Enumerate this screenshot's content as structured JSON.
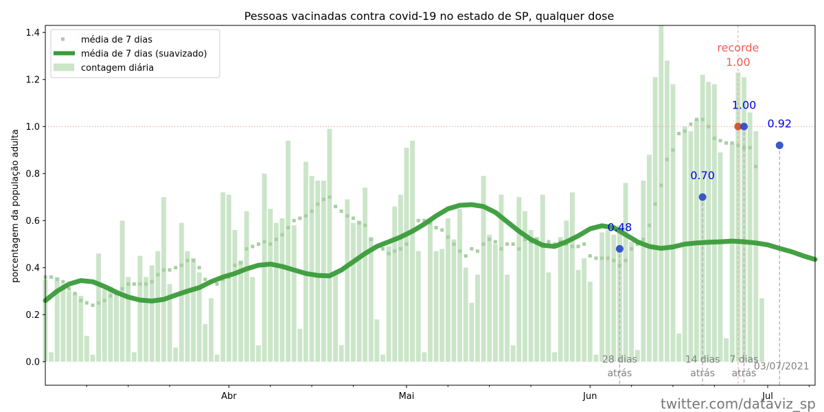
{
  "chart_data": {
    "type": "bar",
    "title": "Pessoas vacinadas contra covid-19 no estado de SP, qualquer dose",
    "ylabel": "porcentagem da população adulta",
    "xlabel": "",
    "ylim": [
      -0.1,
      1.43
    ],
    "yticks": [
      0.0,
      0.2,
      0.4,
      0.6,
      0.8,
      1.0,
      1.2,
      1.4
    ],
    "ytick_labels": [
      "0.0",
      "0.2",
      "0.4",
      "0.6",
      "0.8",
      "1.0",
      "1.2",
      "1.4"
    ],
    "x_start_date": "2021-03-01",
    "x_end_date": "2021-07-09",
    "month_ticks": [
      {
        "label": "Abr",
        "date": "2021-04-01"
      },
      {
        "label": "Mai",
        "date": "2021-05-01"
      },
      {
        "label": "Jun",
        "date": "2021-06-01"
      },
      {
        "label": "Jul",
        "date": "2021-07-01"
      }
    ],
    "minor_tick_dates": [
      "2021-03-08",
      "2021-03-15",
      "2021-03-22",
      "2021-04-08",
      "2021-04-15",
      "2021-04-22",
      "2021-05-08",
      "2021-05-15",
      "2021-05-22",
      "2021-06-08",
      "2021-06-15",
      "2021-06-22",
      "2021-07-08"
    ],
    "legend": {
      "position": "upper-left",
      "entries": [
        {
          "label": "média de 7 dias",
          "kind": "points"
        },
        {
          "label": "média de 7 dias (suavizado)",
          "kind": "line"
        },
        {
          "label": "contagem diária",
          "kind": "bar"
        }
      ]
    },
    "colors": {
      "bar": "#cbe5c9",
      "points": "#a8cfa3",
      "line": "#3a9b3a",
      "marker": "#2747c9",
      "record_marker": "#d24a1f",
      "record_text": "#f25c54",
      "annotation": "#0000e6",
      "guide": "#aaaaaa",
      "gray_text": "#808080"
    },
    "daily_counts": [
      0.35,
      0.04,
      0.36,
      0.33,
      0.3,
      0.29,
      0.28,
      0.11,
      0.03,
      0.46,
      0.31,
      0.32,
      0.29,
      0.6,
      0.36,
      0.04,
      0.45,
      0.36,
      0.41,
      0.47,
      0.7,
      0.33,
      0.06,
      0.59,
      0.47,
      0.44,
      0.38,
      0.16,
      0.27,
      0.03,
      0.72,
      0.71,
      0.56,
      0.43,
      0.64,
      0.36,
      0.07,
      0.8,
      0.65,
      0.59,
      0.61,
      0.94,
      0.58,
      0.14,
      0.85,
      0.79,
      0.77,
      0.77,
      0.99,
      0.38,
      0.07,
      0.69,
      0.59,
      0.6,
      0.74,
      0.53,
      0.18,
      0.03,
      0.49,
      0.66,
      0.71,
      0.91,
      0.94,
      0.47,
      0.04,
      0.6,
      0.47,
      0.48,
      0.61,
      0.52,
      0.65,
      0.4,
      0.25,
      0.37,
      0.79,
      0.54,
      0.5,
      0.71,
      0.37,
      0.07,
      0.7,
      0.64,
      0.56,
      0.53,
      0.71,
      0.38,
      0.04,
      0.53,
      0.6,
      0.72,
      0.39,
      0.44,
      0.34,
      0.03,
      0.55,
      0.56,
      0.54,
      0.58,
      0.76,
      0.51,
      0.05,
      0.77,
      0.88,
      1.21,
      1.43,
      1.28,
      1.18,
      0.12,
      1.0,
      0.98,
      1.03,
      1.22,
      1.19,
      1.18,
      0.89,
      0.1,
      0.93,
      1.23,
      1.21,
      1.06,
      0.98,
      0.27
    ],
    "weekly_avg": [
      0.36,
      0.36,
      0.35,
      0.34,
      0.31,
      0.29,
      0.26,
      0.25,
      0.24,
      0.25,
      0.26,
      0.28,
      0.29,
      0.31,
      0.33,
      0.33,
      0.33,
      0.33,
      0.34,
      0.37,
      0.39,
      0.39,
      0.4,
      0.41,
      0.43,
      0.43,
      0.4,
      0.35,
      0.34,
      0.33,
      0.35,
      0.36,
      0.41,
      0.42,
      0.48,
      0.49,
      0.5,
      0.51,
      0.5,
      0.52,
      0.54,
      0.57,
      0.6,
      0.61,
      0.62,
      0.64,
      0.67,
      0.69,
      0.7,
      0.66,
      0.64,
      0.62,
      0.61,
      0.59,
      0.58,
      0.52,
      0.49,
      0.48,
      0.46,
      0.47,
      0.48,
      0.5,
      0.56,
      0.6,
      0.6,
      0.59,
      0.57,
      0.56,
      0.53,
      0.5,
      0.47,
      0.45,
      0.48,
      0.47,
      0.5,
      0.52,
      0.51,
      0.48,
      0.5,
      0.5,
      0.48,
      0.52,
      0.51,
      0.52,
      0.5,
      0.51,
      0.5,
      0.51,
      0.5,
      0.49,
      0.49,
      0.5,
      0.45,
      0.44,
      0.44,
      0.44,
      0.43,
      0.41,
      0.43,
      0.48,
      0.5,
      0.52,
      0.58,
      0.67,
      0.75,
      0.86,
      0.9,
      0.97,
      0.98,
      1.01,
      1.03,
      1.03,
      1.0,
      0.95,
      0.94,
      0.93,
      0.93,
      0.92,
      0.91,
      0.91,
      0.83
    ],
    "smoothed_line": [
      [
        "2021-03-01",
        0.26
      ],
      [
        "2021-03-03",
        0.3
      ],
      [
        "2021-03-05",
        0.33
      ],
      [
        "2021-03-07",
        0.345
      ],
      [
        "2021-03-09",
        0.34
      ],
      [
        "2021-03-11",
        0.32
      ],
      [
        "2021-03-13",
        0.295
      ],
      [
        "2021-03-15",
        0.275
      ],
      [
        "2021-03-17",
        0.262
      ],
      [
        "2021-03-19",
        0.258
      ],
      [
        "2021-03-21",
        0.265
      ],
      [
        "2021-03-23",
        0.283
      ],
      [
        "2021-03-25",
        0.3
      ],
      [
        "2021-03-27",
        0.315
      ],
      [
        "2021-03-29",
        0.34
      ],
      [
        "2021-03-31",
        0.36
      ],
      [
        "2021-04-02",
        0.375
      ],
      [
        "2021-04-04",
        0.395
      ],
      [
        "2021-04-06",
        0.41
      ],
      [
        "2021-04-08",
        0.415
      ],
      [
        "2021-04-10",
        0.405
      ],
      [
        "2021-04-12",
        0.39
      ],
      [
        "2021-04-14",
        0.375
      ],
      [
        "2021-04-16",
        0.367
      ],
      [
        "2021-04-18",
        0.365
      ],
      [
        "2021-04-20",
        0.39
      ],
      [
        "2021-04-22",
        0.425
      ],
      [
        "2021-04-24",
        0.46
      ],
      [
        "2021-04-26",
        0.49
      ],
      [
        "2021-04-28",
        0.51
      ],
      [
        "2021-04-30",
        0.53
      ],
      [
        "2021-05-02",
        0.555
      ],
      [
        "2021-05-04",
        0.585
      ],
      [
        "2021-05-06",
        0.62
      ],
      [
        "2021-05-08",
        0.65
      ],
      [
        "2021-05-10",
        0.665
      ],
      [
        "2021-05-12",
        0.668
      ],
      [
        "2021-05-14",
        0.66
      ],
      [
        "2021-05-16",
        0.635
      ],
      [
        "2021-05-18",
        0.595
      ],
      [
        "2021-05-20",
        0.555
      ],
      [
        "2021-05-22",
        0.52
      ],
      [
        "2021-05-24",
        0.495
      ],
      [
        "2021-05-26",
        0.49
      ],
      [
        "2021-05-28",
        0.51
      ],
      [
        "2021-05-30",
        0.535
      ],
      [
        "2021-06-01",
        0.565
      ],
      [
        "2021-06-03",
        0.578
      ],
      [
        "2021-06-05",
        0.57
      ],
      [
        "2021-06-07",
        0.54
      ],
      [
        "2021-06-09",
        0.51
      ],
      [
        "2021-06-11",
        0.49
      ],
      [
        "2021-06-13",
        0.482
      ],
      [
        "2021-06-15",
        0.488
      ],
      [
        "2021-06-17",
        0.5
      ],
      [
        "2021-06-19",
        0.505
      ],
      [
        "2021-06-21",
        0.508
      ],
      [
        "2021-06-23",
        0.51
      ],
      [
        "2021-06-25",
        0.513
      ],
      [
        "2021-06-27",
        0.51
      ],
      [
        "2021-06-29",
        0.505
      ],
      [
        "2021-07-01",
        0.497
      ],
      [
        "2021-07-03",
        0.482
      ],
      [
        "2021-07-05",
        0.468
      ],
      [
        "2021-07-07",
        0.45
      ],
      [
        "2021-07-09",
        0.435
      ]
    ],
    "markers": [
      {
        "date": "2021-06-06",
        "value": 0.48,
        "label": "0.48",
        "guide_label": "28 dias\natrás",
        "kind": "normal"
      },
      {
        "date": "2021-06-20",
        "value": 0.7,
        "label": "0.70",
        "guide_label": "14 dias\natrás",
        "kind": "normal"
      },
      {
        "date": "2021-06-26",
        "value": 1.0,
        "label": "recorde\n1.00",
        "guide_label": "",
        "kind": "record"
      },
      {
        "date": "2021-06-27",
        "value": 1.0,
        "label": "1.00",
        "guide_label": "7 dias\natrás",
        "kind": "normal"
      },
      {
        "date": "2021-07-03",
        "value": 0.92,
        "label": "0.92",
        "guide_label": "03/07/2021",
        "kind": "normal"
      }
    ],
    "reference_line": {
      "value": 1.0,
      "style": "dotted",
      "color": "#f2a0a0"
    }
  },
  "footer": {
    "credit": "twitter.com/dataviz_sp"
  }
}
